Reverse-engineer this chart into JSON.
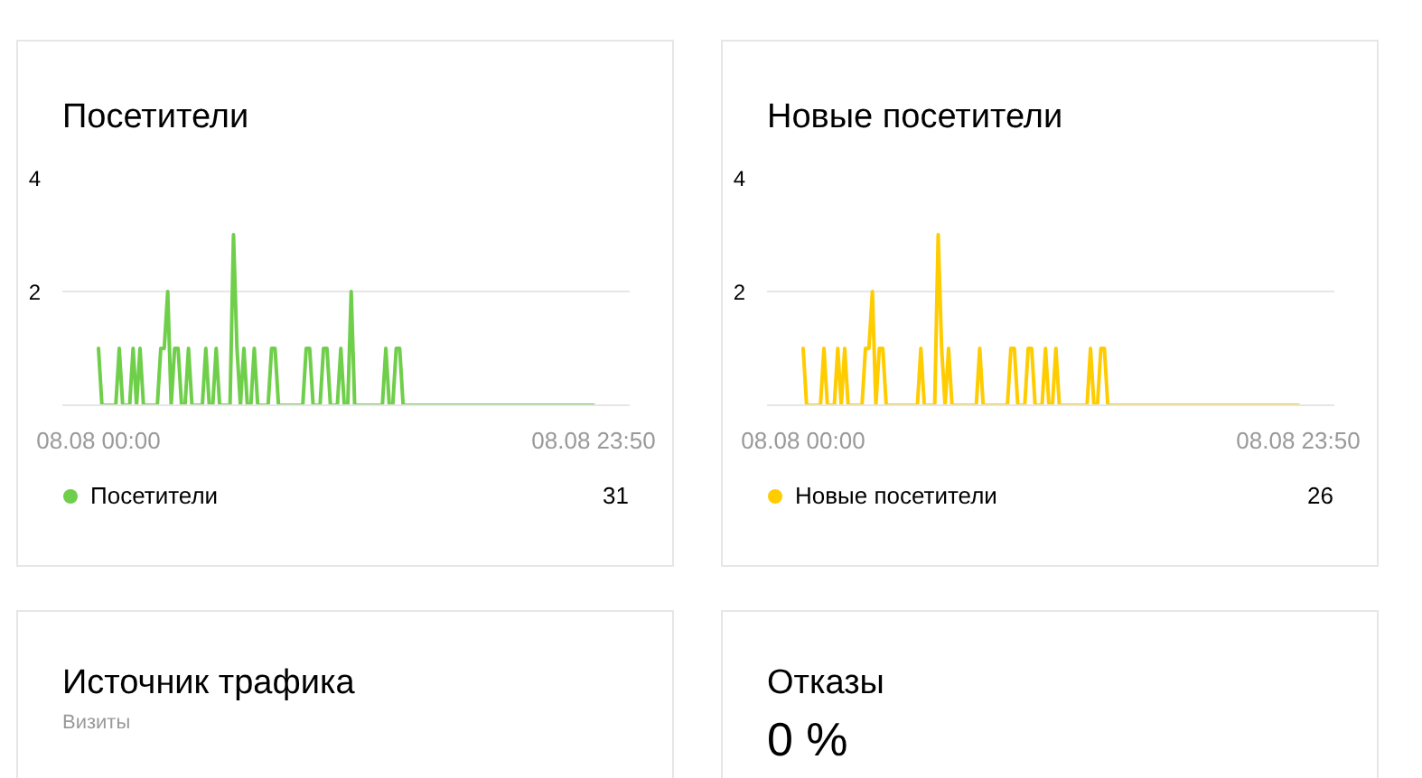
{
  "chart_data": [
    {
      "type": "line",
      "title": "Посетители",
      "categories": [
        "08.08 00:00",
        null,
        null,
        null,
        null,
        null,
        null,
        null,
        null,
        null,
        null,
        null,
        null,
        null,
        null,
        null,
        null,
        null,
        null,
        null,
        null,
        null,
        null,
        null,
        null,
        null,
        null,
        null,
        null,
        null,
        null,
        null,
        null,
        null,
        null,
        null,
        null,
        null,
        null,
        null,
        null,
        null,
        null,
        null,
        null,
        null,
        null,
        null,
        null,
        null,
        null,
        null,
        null,
        null,
        null,
        null,
        null,
        null,
        null,
        null,
        null,
        null,
        null,
        null,
        null,
        null,
        null,
        null,
        null,
        null,
        null,
        null,
        null,
        null,
        null,
        null,
        null,
        null,
        null,
        null,
        null,
        null,
        null,
        null,
        null,
        null,
        null,
        null,
        null,
        null,
        null,
        null,
        null,
        null,
        null,
        null,
        null,
        null,
        null,
        null,
        null,
        null,
        null,
        null,
        null,
        null,
        null,
        null,
        null,
        null,
        null,
        null,
        null,
        null,
        null,
        null,
        null,
        null,
        null,
        null,
        null,
        null,
        null,
        null,
        null,
        null,
        null,
        null,
        null,
        null,
        null,
        null,
        null,
        null,
        null,
        null,
        null,
        null,
        null,
        null,
        null,
        null,
        null,
        "08.08 23:50"
      ],
      "series": [
        {
          "name": "Посетители",
          "color": "#6fcf4a",
          "values": [
            1,
            0,
            0,
            0,
            0,
            0,
            1,
            0,
            0,
            0,
            1,
            0,
            1,
            0,
            0,
            0,
            0,
            0,
            1,
            1,
            2,
            0,
            1,
            1,
            0,
            0,
            1,
            0,
            0,
            0,
            0,
            1,
            0,
            0,
            1,
            0,
            0,
            0,
            0,
            3,
            1,
            0,
            1,
            0,
            0,
            1,
            0,
            0,
            0,
            0,
            1,
            1,
            0,
            0,
            0,
            0,
            0,
            0,
            0,
            0,
            1,
            1,
            0,
            0,
            0,
            1,
            1,
            0,
            0,
            0,
            1,
            0,
            0,
            2,
            0,
            0,
            0,
            0,
            0,
            0,
            0,
            0,
            0,
            1,
            0,
            0,
            1,
            1,
            0,
            0,
            0,
            0,
            0,
            0,
            0,
            0,
            0,
            0,
            0,
            0,
            0,
            0,
            0,
            0,
            0,
            0,
            0,
            0,
            0,
            0,
            0,
            0,
            0,
            0,
            0,
            0,
            0,
            0,
            0,
            0,
            0,
            0,
            0,
            0,
            0,
            0,
            0,
            0,
            0,
            0,
            0,
            0,
            0,
            0,
            0,
            0,
            0,
            0,
            0,
            0,
            0,
            0,
            0,
            0
          ]
        }
      ],
      "ylim": [
        0,
        4
      ],
      "yticks": [
        2,
        4
      ],
      "grid": "y",
      "legend": "bottom",
      "annotations": [
        "31"
      ]
    },
    {
      "type": "line",
      "title": "Новые посетители",
      "categories": [
        "08.08 00:00",
        null,
        null,
        null,
        null,
        null,
        null,
        null,
        null,
        null,
        null,
        null,
        null,
        null,
        null,
        null,
        null,
        null,
        null,
        null,
        null,
        null,
        null,
        null,
        null,
        null,
        null,
        null,
        null,
        null,
        null,
        null,
        null,
        null,
        null,
        null,
        null,
        null,
        null,
        null,
        null,
        null,
        null,
        null,
        null,
        null,
        null,
        null,
        null,
        null,
        null,
        null,
        null,
        null,
        null,
        null,
        null,
        null,
        null,
        null,
        null,
        null,
        null,
        null,
        null,
        null,
        null,
        null,
        null,
        null,
        null,
        null,
        null,
        null,
        null,
        null,
        null,
        null,
        null,
        null,
        null,
        null,
        null,
        null,
        null,
        null,
        null,
        null,
        null,
        null,
        null,
        null,
        null,
        null,
        null,
        null,
        null,
        null,
        null,
        null,
        null,
        null,
        null,
        null,
        null,
        null,
        null,
        null,
        null,
        null,
        null,
        null,
        null,
        null,
        null,
        null,
        null,
        null,
        null,
        null,
        null,
        null,
        null,
        null,
        null,
        null,
        null,
        null,
        null,
        null,
        null,
        null,
        null,
        null,
        null,
        null,
        null,
        null,
        null,
        null,
        null,
        null,
        null,
        "08.08 23:50"
      ],
      "series": [
        {
          "name": "Новые посетители",
          "color": "#ffcc00",
          "values": [
            1,
            0,
            0,
            0,
            0,
            0,
            1,
            0,
            0,
            0,
            1,
            0,
            1,
            0,
            0,
            0,
            0,
            0,
            1,
            1,
            2,
            0,
            1,
            1,
            0,
            0,
            0,
            0,
            0,
            0,
            0,
            0,
            0,
            0,
            1,
            0,
            0,
            0,
            0,
            3,
            1,
            0,
            1,
            0,
            0,
            0,
            0,
            0,
            0,
            0,
            0,
            1,
            0,
            0,
            0,
            0,
            0,
            0,
            0,
            0,
            1,
            1,
            0,
            0,
            0,
            1,
            1,
            0,
            0,
            0,
            1,
            0,
            0,
            1,
            0,
            0,
            0,
            0,
            0,
            0,
            0,
            0,
            0,
            1,
            0,
            0,
            1,
            1,
            0,
            0,
            0,
            0,
            0,
            0,
            0,
            0,
            0,
            0,
            0,
            0,
            0,
            0,
            0,
            0,
            0,
            0,
            0,
            0,
            0,
            0,
            0,
            0,
            0,
            0,
            0,
            0,
            0,
            0,
            0,
            0,
            0,
            0,
            0,
            0,
            0,
            0,
            0,
            0,
            0,
            0,
            0,
            0,
            0,
            0,
            0,
            0,
            0,
            0,
            0,
            0,
            0,
            0,
            0,
            0
          ]
        }
      ],
      "ylim": [
        0,
        4
      ],
      "yticks": [
        2,
        4
      ],
      "grid": "y",
      "legend": "bottom",
      "annotations": [
        "26"
      ]
    },
    {
      "type": "other",
      "title": "Источник трафика",
      "subtitle": "Визиты"
    },
    {
      "type": "other",
      "title": "Отказы",
      "annotations": [
        "0 %"
      ]
    }
  ]
}
